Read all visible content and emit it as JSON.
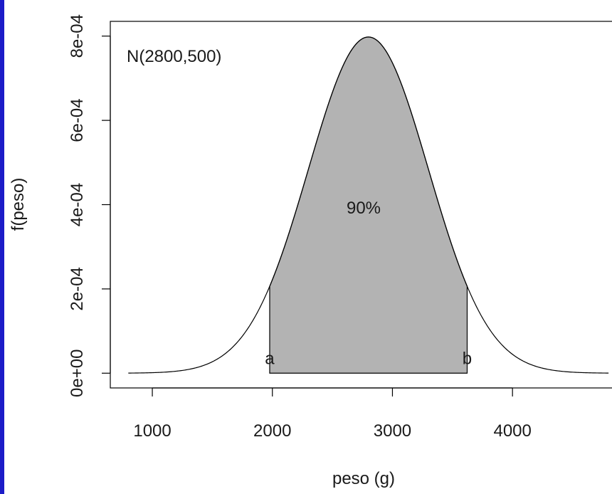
{
  "chart_data": {
    "type": "area",
    "annotation_dist": "N(2800,500)",
    "annotation_area": "90%",
    "xlabel": "peso (g)",
    "ylabel": "f(peso)",
    "xlim": [
      650,
      4900
    ],
    "ylim": [
      -3.5e-05,
      0.000835
    ],
    "x_ticks": [
      1000,
      2000,
      3000,
      4000
    ],
    "x_tick_labels": [
      "1000",
      "2000",
      "3000",
      "4000"
    ],
    "y_ticks": [
      0,
      0.0002,
      0.0004,
      0.0006,
      0.0008
    ],
    "y_tick_labels": [
      "0e+00",
      "2e-04",
      "4e-04",
      "6e-04",
      "8e-04"
    ],
    "curve": {
      "mean": 2800,
      "sd": 500,
      "x_from": 800,
      "x_to": 4800
    },
    "shaded_region": {
      "a": 1977.6,
      "b": 3622.4,
      "probability": 0.9
    },
    "point_labels": {
      "a": "a",
      "b": "b"
    },
    "colors": {
      "fill": "#b3b3b3",
      "line": "#000000",
      "left_bar": "#1c1cc8"
    },
    "grid": false
  }
}
